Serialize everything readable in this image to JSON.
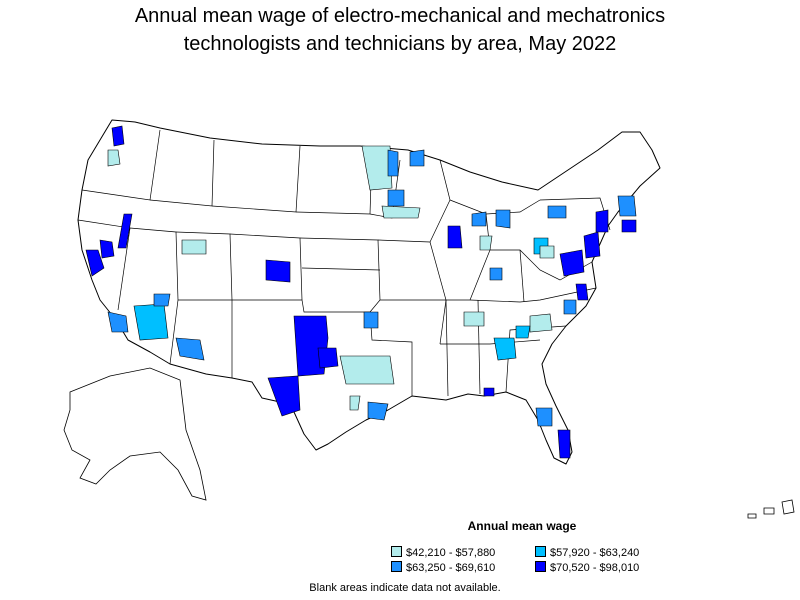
{
  "title": {
    "line1": "Annual mean wage of electro-mechanical and mechatronics",
    "line2": "technologists and technicians by area, May 2022"
  },
  "colors": {
    "tier1": "#b3ecec",
    "tier2": "#00bfff",
    "tier3": "#1e90ff",
    "tier4": "#0000ff",
    "outline": "#000000",
    "blank": "#ffffff"
  },
  "legend": {
    "title": "Annual mean wage",
    "items": [
      {
        "range": "$42,210 - $57,880",
        "tier": "tier1"
      },
      {
        "range": "$57,920 - $63,240",
        "tier": "tier2"
      },
      {
        "range": "$63,250 - $69,610",
        "tier": "tier3"
      },
      {
        "range": "$70,520 - $98,010",
        "tier": "tier4"
      }
    ]
  },
  "footnote": "Blank areas indicate data not available."
}
